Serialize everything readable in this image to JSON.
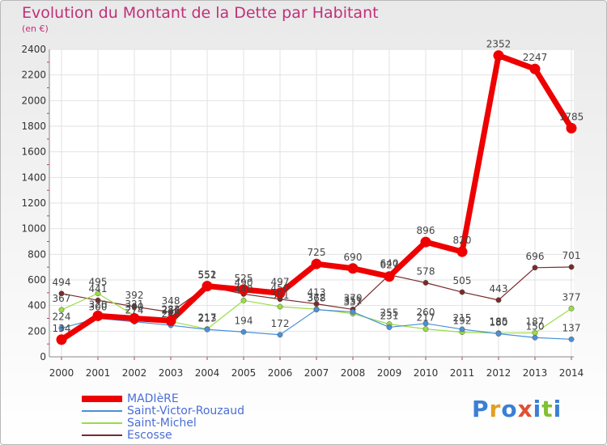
{
  "title": "Evolution du Montant de la Dette par Habitant",
  "unit": "(en €)",
  "logo": "Proxiti",
  "chart_data": {
    "type": "line",
    "title": "Evolution du Montant de la Dette par Habitant",
    "ylabel": "(en €)",
    "ylim": [
      0,
      2400
    ],
    "yticks": [
      0,
      200,
      400,
      600,
      800,
      1000,
      1200,
      1400,
      1600,
      1800,
      2000,
      2200,
      2400
    ],
    "grid": true,
    "legend_position": "bottom-left",
    "x": [
      "2000",
      "2001",
      "2002",
      "2003",
      "2004",
      "2005",
      "2006",
      "2007",
      "2008",
      "2009",
      "2010",
      "2011",
      "2012",
      "2013",
      "2014"
    ],
    "series": [
      {
        "name": "MADIèRE",
        "color": "#ee0000",
        "values": [
          134,
          320,
          300,
          282,
          552,
          525,
          497,
          725,
          690,
          627,
          896,
          820,
          2352,
          2247,
          1785
        ]
      },
      {
        "name": "Saint-Victor-Rouzaud",
        "color": "#4a90d9",
        "values": [
          224,
          300,
          274,
          246,
          213,
          194,
          172,
          368,
          351,
          231,
          260,
          215,
          180,
          150,
          137
        ]
      },
      {
        "name": "Saint-Michel",
        "color": "#99dd44",
        "values": [
          367,
          495,
          321,
          276,
          217,
          440,
          391,
          372,
          337,
          255,
          217,
          192,
          185,
          187,
          377
        ]
      },
      {
        "name": "Escosse",
        "color": "#7a2a2a",
        "values": [
          494,
          441,
          392,
          348,
          551,
          490,
          450,
          413,
          370,
          640,
          578,
          505,
          443,
          696,
          701
        ]
      }
    ]
  }
}
